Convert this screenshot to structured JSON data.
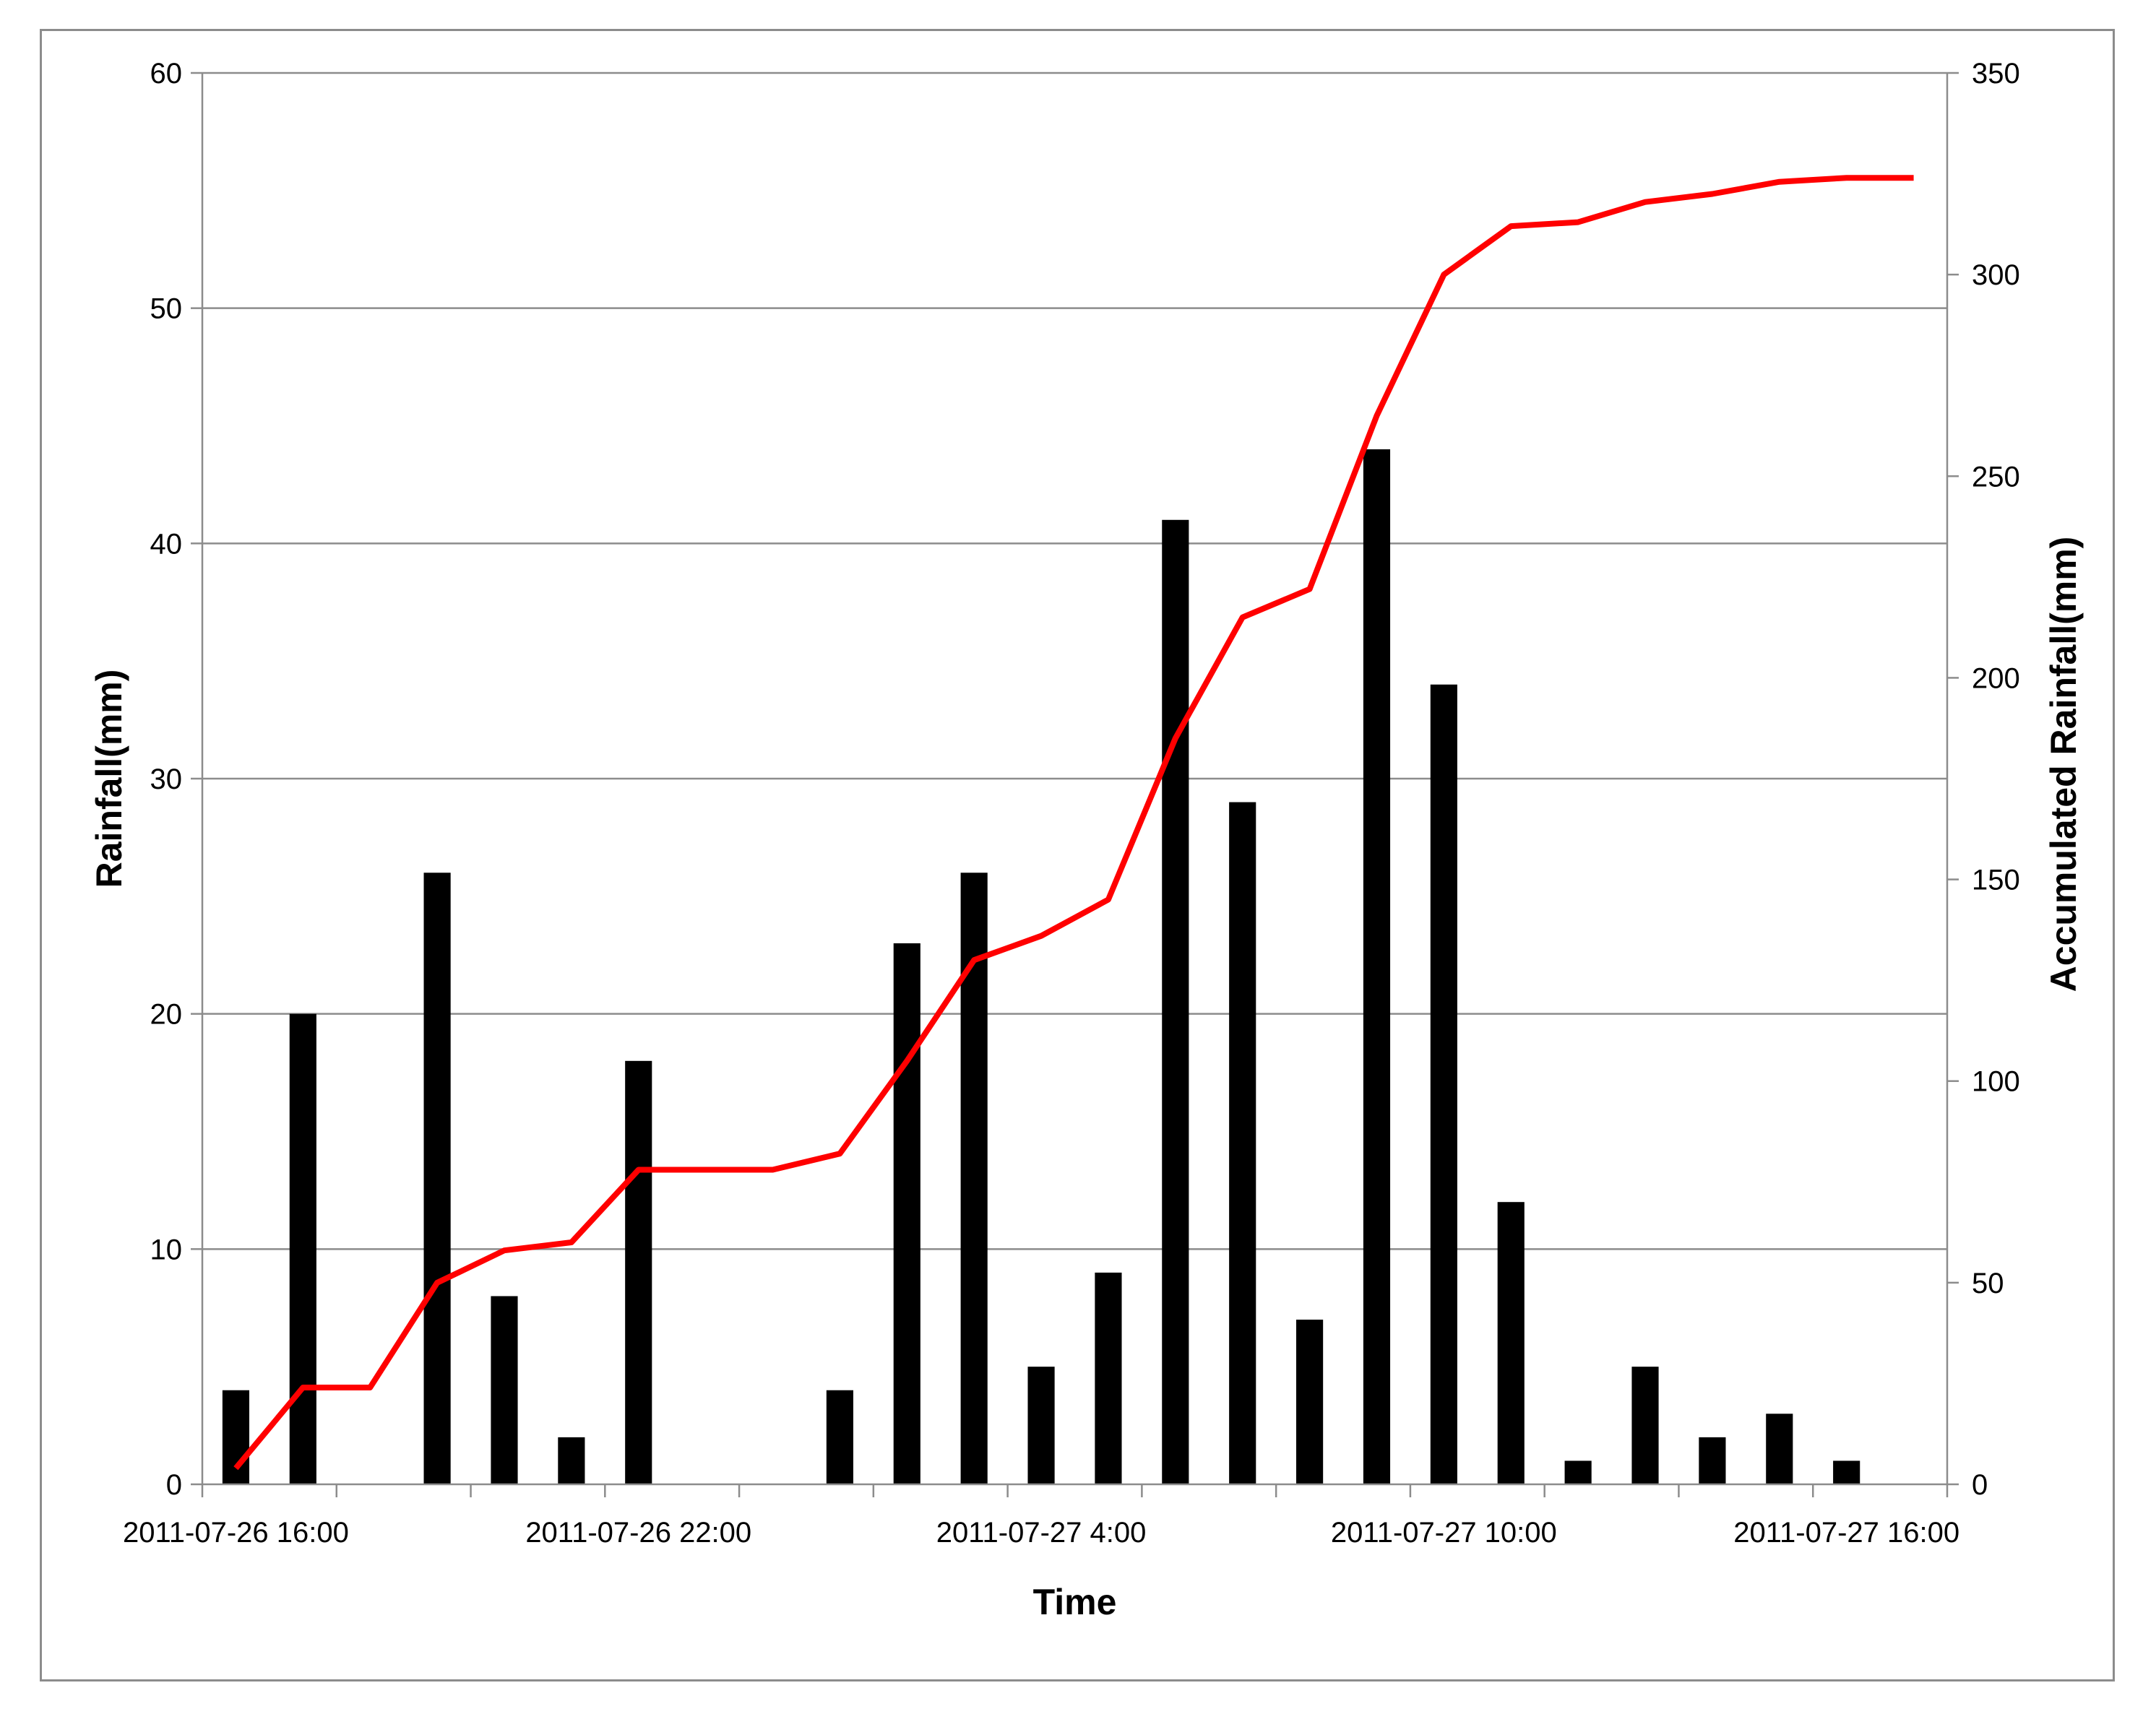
{
  "chart_data": {
    "type": "bar",
    "title": "",
    "xlabel": "Time",
    "ylabel": "Rainfall(mm)",
    "ylabel_right": "Accumulated Rainfall(mm)",
    "ylim": [
      0,
      60
    ],
    "ylim_right": [
      0,
      350
    ],
    "y_ticks": [
      "0",
      "10",
      "20",
      "30",
      "40",
      "50",
      "60"
    ],
    "y_ticks_right": [
      "0",
      "50",
      "100",
      "150",
      "200",
      "250",
      "300",
      "350"
    ],
    "x_start": "2011-07-26 15:30",
    "x_end": "2011-07-27 17:30",
    "x_tick_labels": [
      "2011-07-26 16:00",
      "2011-07-26 22:00",
      "2011-07-27 4:00",
      "2011-07-27 10:00",
      "2011-07-27 16:00"
    ],
    "grid": true,
    "categories": [
      "2011-07-26 16:00",
      "2011-07-26 17:00",
      "2011-07-26 18:00",
      "2011-07-26 19:00",
      "2011-07-26 20:00",
      "2011-07-26 21:00",
      "2011-07-26 22:00",
      "2011-07-26 23:00",
      "2011-07-27 0:00",
      "2011-07-27 1:00",
      "2011-07-27 2:00",
      "2011-07-27 3:00",
      "2011-07-27 4:00",
      "2011-07-27 5:00",
      "2011-07-27 6:00",
      "2011-07-27 7:00",
      "2011-07-27 8:00",
      "2011-07-27 9:00",
      "2011-07-27 10:00",
      "2011-07-27 11:00",
      "2011-07-27 12:00",
      "2011-07-27 13:00",
      "2011-07-27 14:00",
      "2011-07-27 15:00",
      "2011-07-27 16:00",
      "2011-07-27 17:00"
    ],
    "series": [
      {
        "kind": "bar",
        "axis": "left",
        "color": "#000000",
        "values": [
          4,
          20,
          0,
          26,
          8,
          2,
          18,
          0,
          0,
          4,
          23,
          26,
          5,
          9,
          41,
          29,
          7,
          44,
          34,
          12,
          1,
          5,
          2,
          3,
          1,
          0
        ]
      },
      {
        "kind": "line",
        "axis": "right",
        "color": "#ff0000",
        "values": [
          4,
          24,
          24,
          50,
          58,
          60,
          78,
          78,
          78,
          82,
          105,
          130,
          136,
          145,
          185,
          215,
          222,
          265,
          300,
          312,
          313,
          318,
          320,
          323,
          324,
          324
        ]
      }
    ]
  }
}
